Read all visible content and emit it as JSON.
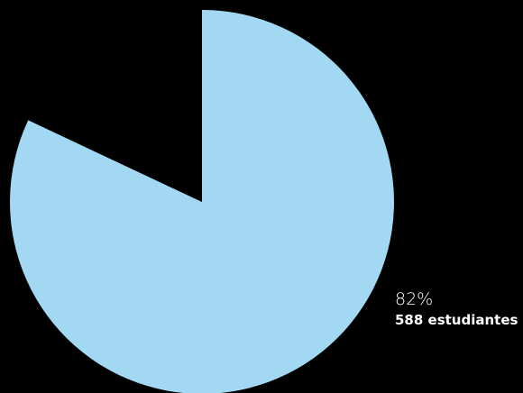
{
  "chart_data": {
    "type": "pie",
    "slices": [
      {
        "value": 82,
        "percent_label": "82%",
        "count_label": "588 estudiantes",
        "color": "#a2d8f2"
      },
      {
        "value": 18,
        "percent_label": "",
        "count_label": "",
        "color": "#000000"
      }
    ],
    "start_angle_deg": 0,
    "direction": "clockwise"
  }
}
